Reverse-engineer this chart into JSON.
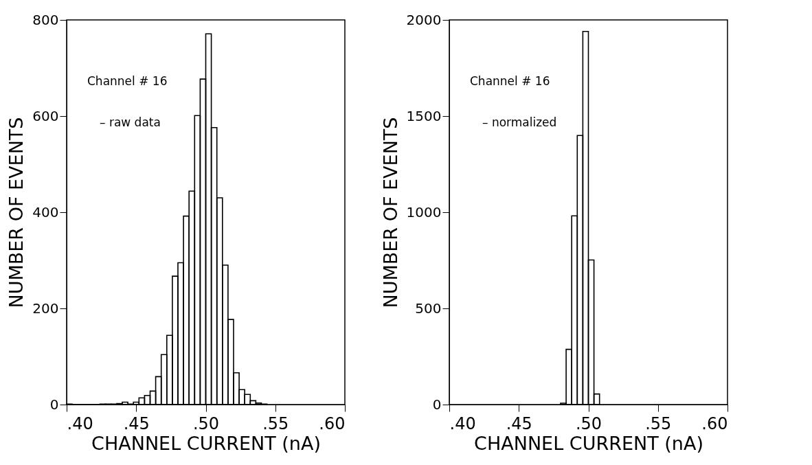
{
  "chart_data": [
    {
      "type": "histogram",
      "xlabel": "CHANNEL CURRENT (nA)",
      "ylabel": "NUMBER OF EVENTS",
      "color": "#000000",
      "bins": [
        0.4,
        0.404,
        0.408,
        0.412,
        0.416,
        0.42,
        0.424,
        0.428,
        0.432,
        0.436,
        0.44,
        0.444,
        0.448,
        0.452,
        0.456,
        0.46,
        0.464,
        0.468,
        0.472,
        0.476,
        0.48,
        0.484,
        0.488,
        0.492,
        0.496,
        0.5,
        0.504,
        0.508,
        0.512,
        0.516,
        0.52,
        0.524,
        0.528,
        0.532,
        0.536,
        0.54,
        0.544
      ],
      "values": [
        1,
        0,
        0,
        0,
        0,
        0,
        1,
        1,
        1,
        2,
        5,
        1,
        5,
        14,
        19,
        28,
        58,
        104,
        144,
        267,
        295,
        392,
        444,
        601,
        677,
        771,
        576,
        430,
        290,
        177,
        66,
        31,
        21,
        8,
        3,
        1
      ],
      "xlim": [
        0.4,
        0.6
      ],
      "xticks": [
        {
          "value": 0.4,
          "label": ".40"
        },
        {
          "value": 0.45,
          "label": ".45"
        },
        {
          "value": 0.5,
          "label": ".50"
        },
        {
          "value": 0.55,
          "label": ".55"
        },
        {
          "value": 0.6,
          "label": ".60"
        }
      ],
      "ylim": [
        0,
        800
      ],
      "yticks": [
        0,
        200,
        400,
        600,
        800
      ],
      "annotations": [
        "Channel # 16",
        "– raw data"
      ]
    },
    {
      "type": "histogram",
      "xlabel": "CHANNEL CURRENT (nA)",
      "ylabel": "NUMBER OF EVENTS",
      "color": "#000000",
      "bins": [
        0.48,
        0.484,
        0.488,
        0.492,
        0.496,
        0.5,
        0.504,
        0.508
      ],
      "values": [
        7,
        287,
        981,
        1399,
        1940,
        752,
        55
      ],
      "xlim": [
        0.4,
        0.6
      ],
      "xticks": [
        {
          "value": 0.4,
          "label": ".40"
        },
        {
          "value": 0.45,
          "label": ".45"
        },
        {
          "value": 0.5,
          "label": ".50"
        },
        {
          "value": 0.55,
          "label": ".55"
        },
        {
          "value": 0.6,
          "label": ".60"
        }
      ],
      "ylim": [
        0,
        2000
      ],
      "yticks": [
        0,
        500,
        1000,
        1500,
        2000
      ],
      "annotations": [
        "Channel # 16",
        "– normalized"
      ]
    }
  ]
}
